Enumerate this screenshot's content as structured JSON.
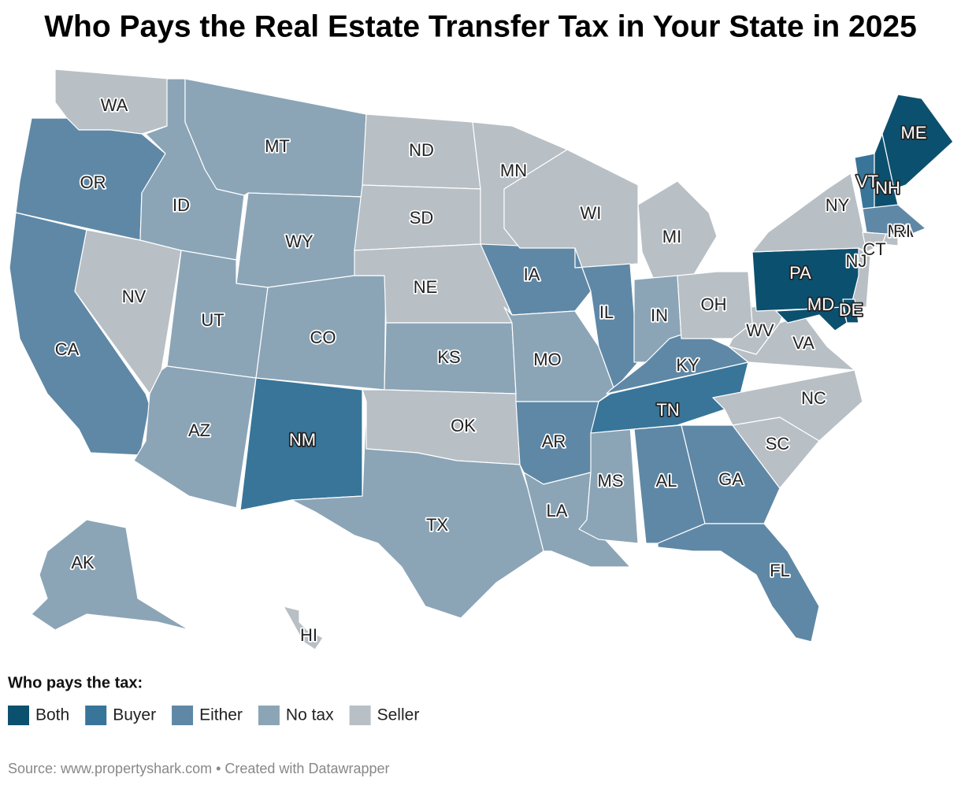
{
  "map": {
    "title": "Who Pays the Real Estate Transfer Tax in Your State in 2025",
    "legend": {
      "title": "Who pays the tax:",
      "items": [
        {
          "label": "Both",
          "color": "#0c506f"
        },
        {
          "label": "Buyer",
          "color": "#387599"
        },
        {
          "label": "Either",
          "color": "#5f88a6"
        },
        {
          "label": "No tax",
          "color": "#8ba5b7"
        },
        {
          "label": "Seller",
          "color": "#b8bfc5"
        }
      ]
    },
    "states": [
      {
        "abbr": "WA",
        "payer": "Seller"
      },
      {
        "abbr": "OR",
        "payer": "Either"
      },
      {
        "abbr": "CA",
        "payer": "Either"
      },
      {
        "abbr": "NV",
        "payer": "Seller"
      },
      {
        "abbr": "ID",
        "payer": "No tax"
      },
      {
        "abbr": "MT",
        "payer": "No tax"
      },
      {
        "abbr": "WY",
        "payer": "No tax"
      },
      {
        "abbr": "UT",
        "payer": "No tax"
      },
      {
        "abbr": "AZ",
        "payer": "No tax"
      },
      {
        "abbr": "CO",
        "payer": "No tax"
      },
      {
        "abbr": "NM",
        "payer": "Buyer"
      },
      {
        "abbr": "ND",
        "payer": "Seller"
      },
      {
        "abbr": "SD",
        "payer": "Seller"
      },
      {
        "abbr": "NE",
        "payer": "Seller"
      },
      {
        "abbr": "KS",
        "payer": "No tax"
      },
      {
        "abbr": "OK",
        "payer": "Seller"
      },
      {
        "abbr": "TX",
        "payer": "No tax"
      },
      {
        "abbr": "MN",
        "payer": "Seller"
      },
      {
        "abbr": "IA",
        "payer": "Either"
      },
      {
        "abbr": "MO",
        "payer": "No tax"
      },
      {
        "abbr": "AR",
        "payer": "Either"
      },
      {
        "abbr": "LA",
        "payer": "No tax"
      },
      {
        "abbr": "WI",
        "payer": "Seller"
      },
      {
        "abbr": "IL",
        "payer": "Either"
      },
      {
        "abbr": "MS",
        "payer": "No tax"
      },
      {
        "abbr": "MI",
        "payer": "Seller"
      },
      {
        "abbr": "IN",
        "payer": "No tax"
      },
      {
        "abbr": "KY",
        "payer": "Either"
      },
      {
        "abbr": "TN",
        "payer": "Buyer"
      },
      {
        "abbr": "AL",
        "payer": "Either"
      },
      {
        "abbr": "GA",
        "payer": "Either"
      },
      {
        "abbr": "FL",
        "payer": "Either"
      },
      {
        "abbr": "OH",
        "payer": "Seller"
      },
      {
        "abbr": "WV",
        "payer": "Seller"
      },
      {
        "abbr": "VA",
        "payer": "Seller"
      },
      {
        "abbr": "NC",
        "payer": "Seller"
      },
      {
        "abbr": "SC",
        "payer": "Seller"
      },
      {
        "abbr": "PA",
        "payer": "Both"
      },
      {
        "abbr": "NY",
        "payer": "Seller"
      },
      {
        "abbr": "VT",
        "payer": "Buyer"
      },
      {
        "abbr": "NH",
        "payer": "Both"
      },
      {
        "abbr": "ME",
        "payer": "Both"
      },
      {
        "abbr": "MA",
        "payer": "Either"
      },
      {
        "abbr": "CT",
        "payer": "Seller"
      },
      {
        "abbr": "RI",
        "payer": "Seller"
      },
      {
        "abbr": "NJ",
        "payer": "Seller"
      },
      {
        "abbr": "DE",
        "payer": "Both"
      },
      {
        "abbr": "MD",
        "payer": "Both"
      },
      {
        "abbr": "AK",
        "payer": "No tax"
      },
      {
        "abbr": "HI",
        "payer": "Seller"
      }
    ],
    "source": "Source: www.propertyshark.com • Created with Datawrapper"
  }
}
